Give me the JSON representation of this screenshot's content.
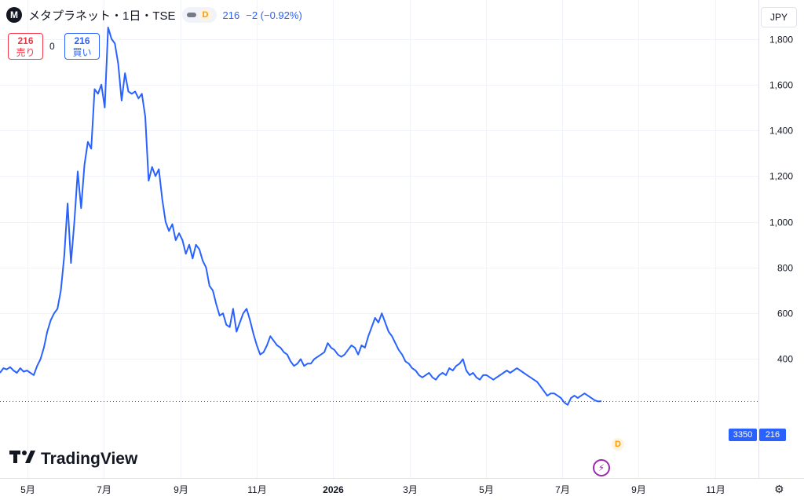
{
  "header": {
    "symbol_logo": "M",
    "title": "メタプラネット・1日・TSE",
    "interval_badge": "D",
    "last": "216",
    "change": "−2 (−0.92%)"
  },
  "currency_button": "JPY",
  "trade": {
    "sell_price": "216",
    "sell_label": "売り",
    "spread": "0",
    "buy_price": "216",
    "buy_label": "買い"
  },
  "watermark": "TradingView",
  "marker_label": "D",
  "price_tag": {
    "count": "3350",
    "price": "216"
  },
  "colors": {
    "line": "#2962ff",
    "grid": "#f0f3fa",
    "sell": "#f23645",
    "buy": "#2962ff"
  },
  "icons": {
    "flash": "lightning-icon",
    "settings": "settings-gear-icon",
    "logo": "tradingview-logo-icon"
  },
  "chart_data": {
    "type": "line",
    "y_ticks": [
      400,
      600,
      800,
      1000,
      1200,
      1400,
      1600,
      1800
    ],
    "y_tick_labels": [
      "400",
      "600",
      "800",
      "1,000",
      "1,200",
      "1,400",
      "1,600",
      "1,800"
    ],
    "x_ticks": [
      "5月",
      "7月",
      "9月",
      "11月",
      "2026",
      "3月",
      "5月",
      "7月",
      "9月",
      "11月"
    ],
    "ylim": [
      -120,
      1970
    ],
    "last_price": 216,
    "series": [
      {
        "values": [
          340,
          360,
          355,
          365,
          350,
          340,
          360,
          345,
          350,
          340,
          330,
          370,
          400,
          450,
          520,
          570,
          600,
          620,
          700,
          850,
          1080,
          820,
          1000,
          1220,
          1060,
          1250,
          1350,
          1320,
          1580,
          1560,
          1600,
          1500,
          1850,
          1800,
          1780,
          1690,
          1530,
          1650,
          1570,
          1560,
          1570,
          1540,
          1560,
          1460,
          1180,
          1240,
          1200,
          1230,
          1100,
          1000,
          960,
          990,
          920,
          950,
          920,
          860,
          900,
          840,
          900,
          880,
          830,
          800,
          720,
          700,
          640,
          590,
          600,
          550,
          540,
          620,
          520,
          560,
          600,
          620,
          570,
          510,
          460,
          420,
          430,
          460,
          500,
          480,
          460,
          450,
          430,
          420,
          390,
          370,
          380,
          400,
          370,
          380,
          380,
          400,
          410,
          420,
          430,
          470,
          450,
          440,
          420,
          410,
          420,
          440,
          460,
          450,
          420,
          460,
          450,
          500,
          540,
          580,
          560,
          600,
          560,
          520,
          500,
          470,
          440,
          420,
          390,
          380,
          360,
          350,
          330,
          320,
          330,
          340,
          320,
          310,
          330,
          340,
          330,
          360,
          350,
          370,
          380,
          400,
          350,
          330,
          340,
          320,
          310,
          330,
          330,
          320,
          310,
          320,
          330,
          340,
          350,
          340,
          350,
          360,
          350,
          340,
          330,
          320,
          310,
          300,
          280,
          260,
          240,
          250,
          250,
          240,
          230,
          210,
          200,
          230,
          240,
          230,
          240,
          250,
          240,
          230,
          220,
          215,
          216
        ]
      }
    ]
  }
}
